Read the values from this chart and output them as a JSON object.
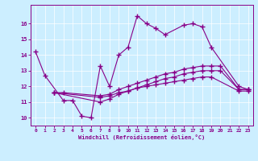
{
  "xlabel": "Windchill (Refroidissement éolien,°C)",
  "background_color": "#cceeff",
  "line_color": "#880088",
  "xlim": [
    -0.5,
    23.5
  ],
  "ylim": [
    9.5,
    17.2
  ],
  "xticks": [
    0,
    1,
    2,
    3,
    4,
    5,
    6,
    7,
    8,
    9,
    10,
    11,
    12,
    13,
    14,
    15,
    16,
    17,
    18,
    19,
    20,
    21,
    22,
    23
  ],
  "yticks": [
    10,
    11,
    12,
    13,
    14,
    15,
    16
  ],
  "series": [
    {
      "x": [
        0,
        1,
        3,
        4,
        5,
        6,
        7,
        8,
        9,
        10,
        11,
        12,
        13,
        14,
        16,
        17,
        18,
        19,
        22,
        23
      ],
      "y": [
        14.2,
        12.7,
        11.1,
        11.1,
        10.1,
        10.0,
        13.3,
        12.0,
        14.0,
        14.5,
        16.5,
        16.0,
        15.7,
        15.3,
        15.9,
        16.0,
        15.8,
        14.5,
        12.0,
        11.8
      ]
    },
    {
      "x": [
        2,
        3,
        7,
        8,
        9,
        10,
        11,
        12,
        13,
        14,
        15,
        16,
        17,
        18,
        19,
        20,
        22,
        23
      ],
      "y": [
        11.6,
        11.6,
        11.4,
        11.5,
        11.8,
        12.0,
        12.2,
        12.4,
        12.6,
        12.8,
        12.9,
        13.1,
        13.2,
        13.3,
        13.3,
        13.3,
        11.8,
        11.8
      ]
    },
    {
      "x": [
        2,
        7,
        8,
        9,
        10,
        11,
        12,
        13,
        14,
        15,
        16,
        17,
        18,
        19,
        20,
        22,
        23
      ],
      "y": [
        11.6,
        11.0,
        11.2,
        11.5,
        11.7,
        11.9,
        12.1,
        12.3,
        12.5,
        12.6,
        12.8,
        12.9,
        13.0,
        13.0,
        13.0,
        11.8,
        11.8
      ]
    },
    {
      "x": [
        2,
        7,
        8,
        9,
        10,
        11,
        12,
        13,
        14,
        15,
        16,
        17,
        18,
        19,
        22,
        23
      ],
      "y": [
        11.6,
        11.3,
        11.4,
        11.6,
        11.7,
        11.9,
        12.0,
        12.1,
        12.2,
        12.3,
        12.4,
        12.5,
        12.6,
        12.6,
        11.7,
        11.7
      ]
    }
  ]
}
